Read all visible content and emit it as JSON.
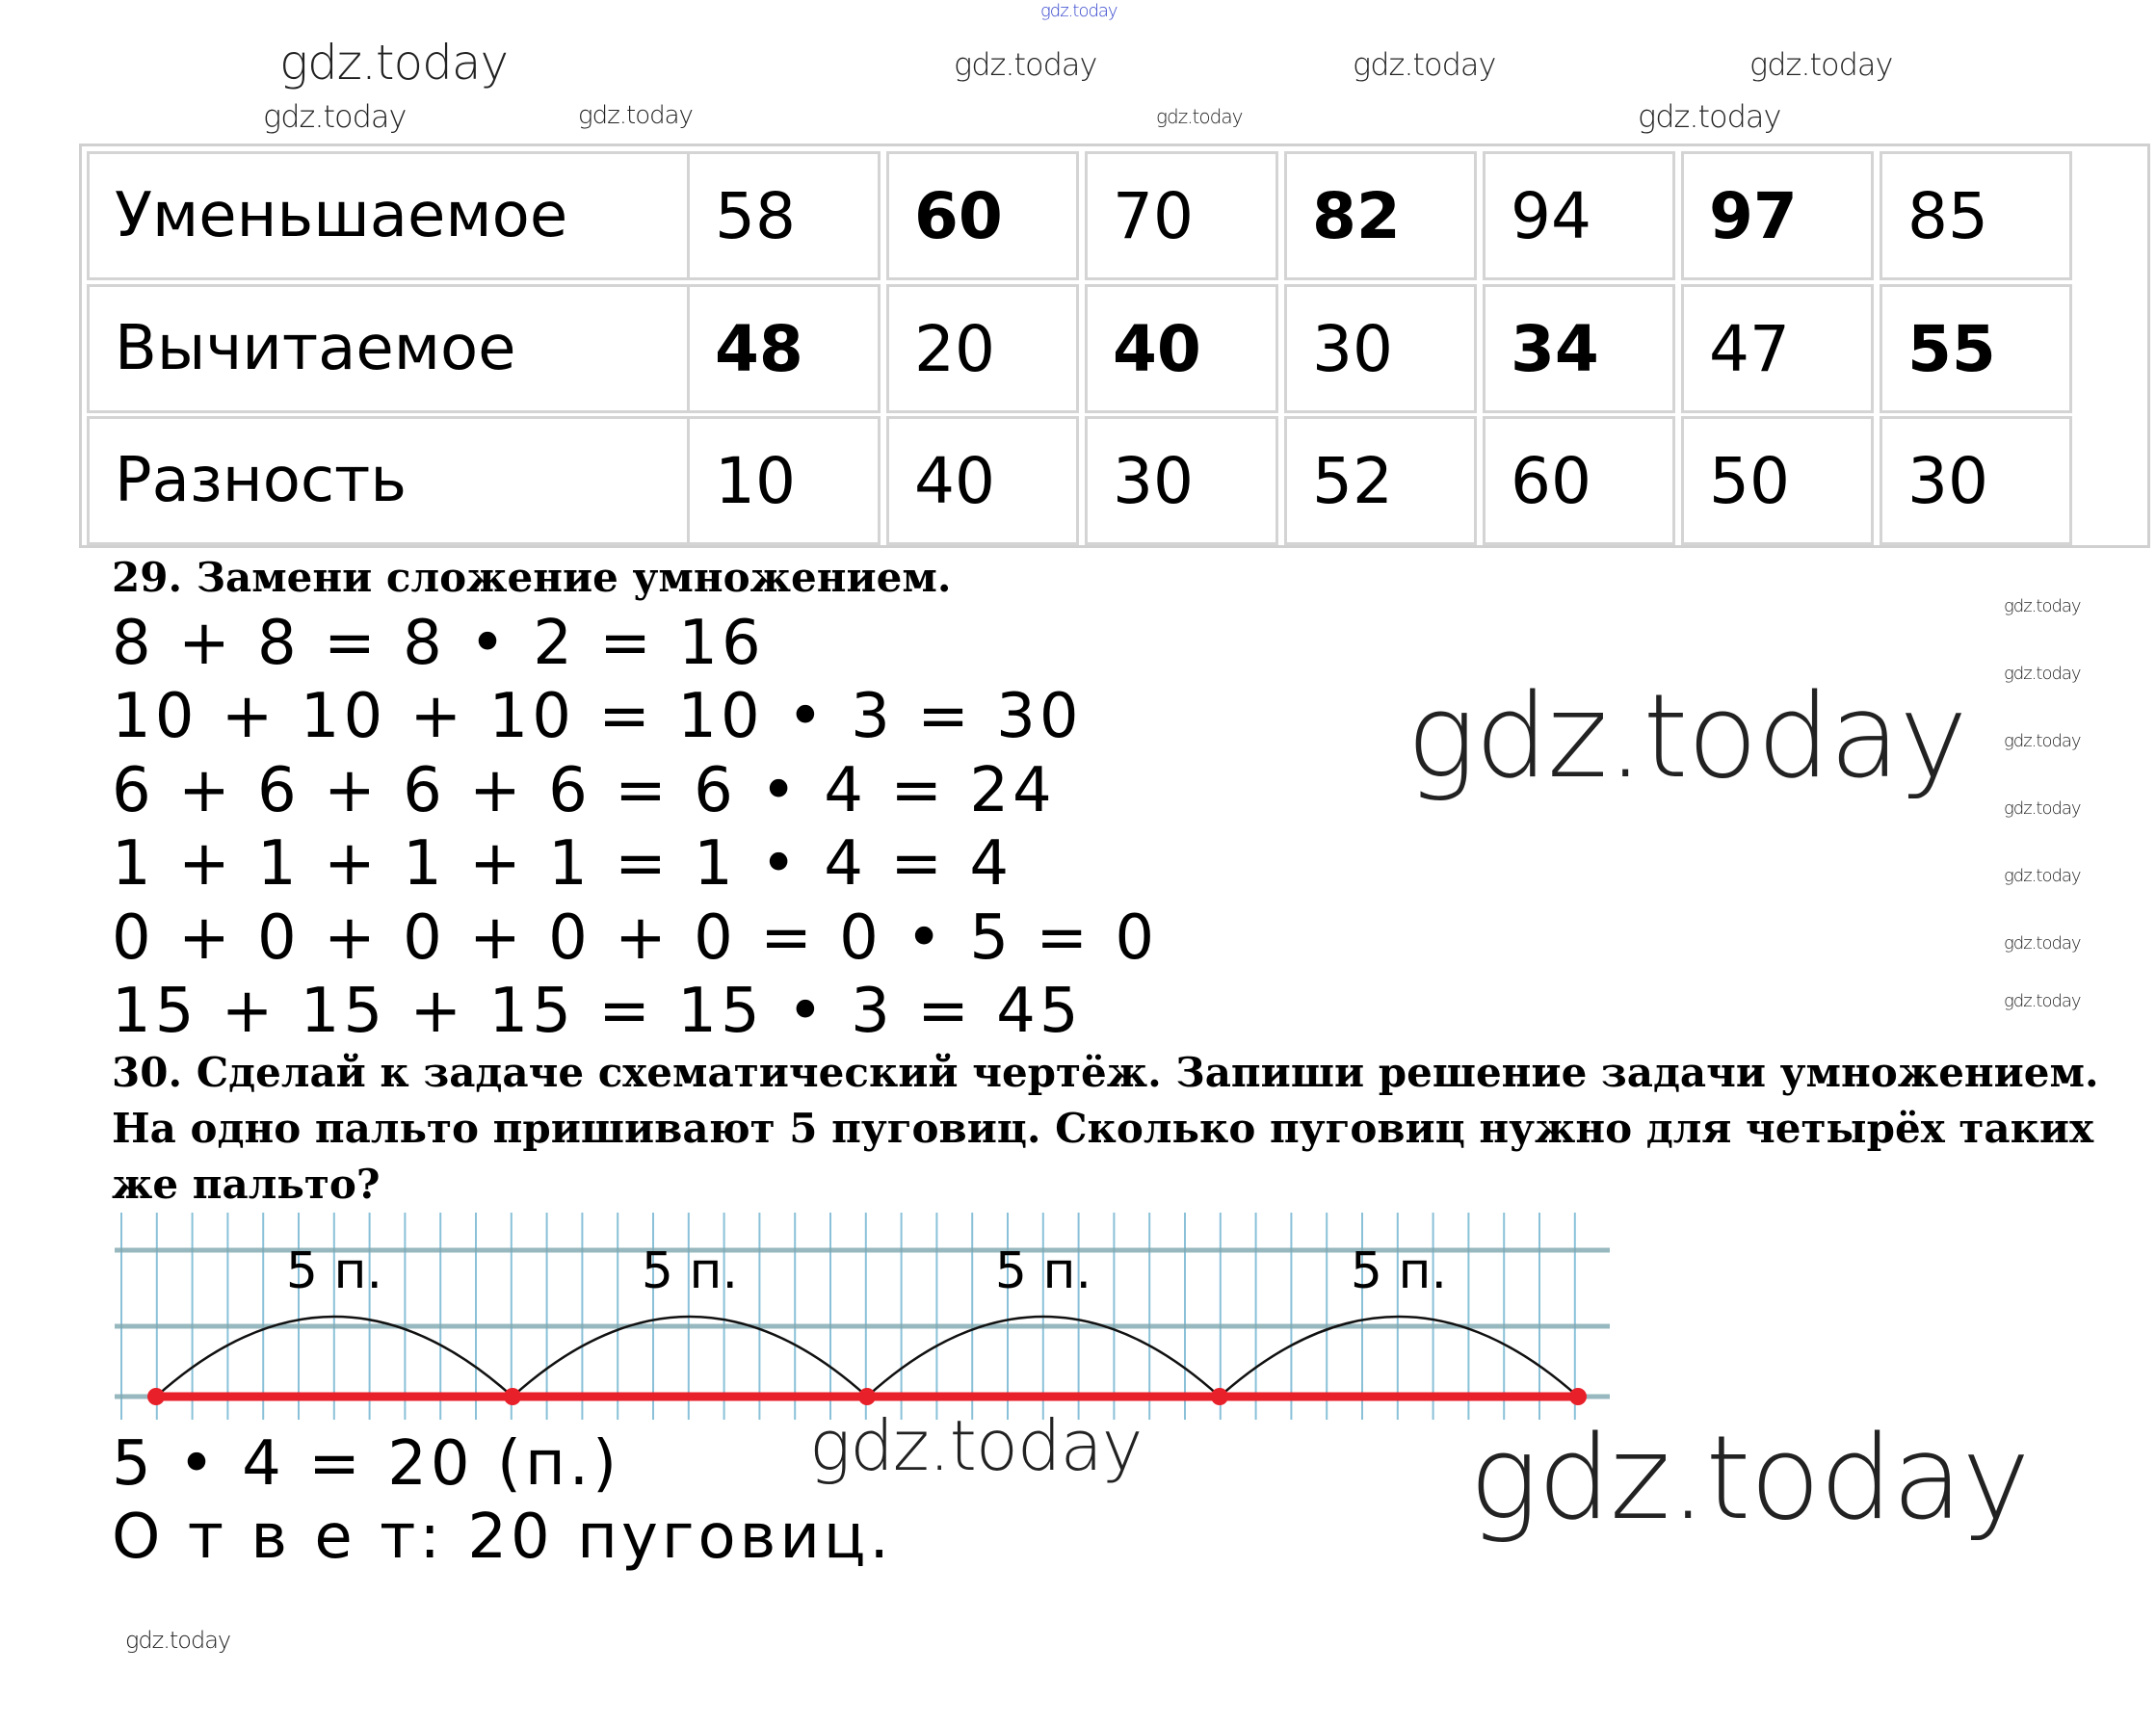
{
  "watermark": "gdz.today",
  "table": {
    "rows": [
      {
        "label": "Уменьшаемое",
        "values": [
          "58",
          "60",
          "70",
          "82",
          "94",
          "97",
          "85"
        ],
        "bold": [
          false,
          true,
          false,
          true,
          false,
          true,
          false
        ]
      },
      {
        "label": "Вычитаемое",
        "values": [
          "48",
          "20",
          "40",
          "30",
          "34",
          "47",
          "55"
        ],
        "bold": [
          true,
          false,
          true,
          false,
          true,
          false,
          true
        ]
      },
      {
        "label": "Разность",
        "values": [
          "10",
          "40",
          "30",
          "52",
          "60",
          "50",
          "30"
        ],
        "bold": [
          false,
          false,
          false,
          false,
          false,
          false,
          false
        ]
      }
    ]
  },
  "task29": {
    "heading": "29. Замени сложение умножением.",
    "lines": [
      "8 + 8 = 8 • 2 = 16",
      "10 + 10 + 10 = 10 • 3  = 30",
      "6 + 6 + 6 + 6 = 6 • 4 = 24",
      "1 + 1 + 1 + 1 = 1 • 4 = 4",
      "0 + 0 + 0 + 0  + 0 = 0 • 5 = 0",
      "15 + 15 + 15 = 15 • 3 = 45"
    ]
  },
  "task30": {
    "heading_lines": [
      "30. Сделай к задаче схематический чертёж. Запиши решение задачи умножением.",
      "На одно пальто пришивают 5 пуговиц. Сколько пуговиц нужно для четырёх таких",
      "же пальто?"
    ],
    "diagram_labels": [
      "5 п.",
      "5 п.",
      "5 п.",
      "5 п."
    ],
    "solution": "5 • 4 = 20 (п.)",
    "answer": "О т в е т: 20 пуговиц."
  },
  "colors": {
    "segment": "#e8202a",
    "grid": "#5aa8c8",
    "watermark_top": "#3344cc"
  }
}
